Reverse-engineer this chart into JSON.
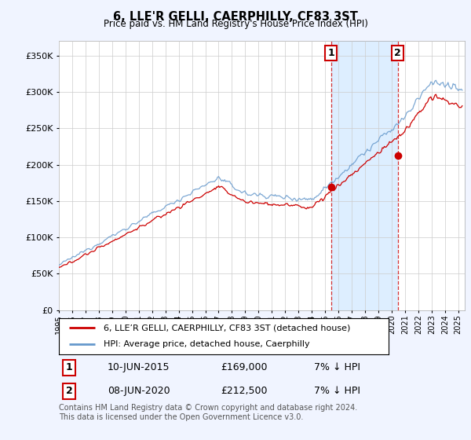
{
  "title": "6, LLE'R GELLI, CAERPHILLY, CF83 3ST",
  "subtitle": "Price paid vs. HM Land Registry's House Price Index (HPI)",
  "legend_line1": "6, LLE’R GELLI, CAERPHILLY, CF83 3ST (detached house)",
  "legend_line2": "HPI: Average price, detached house, Caerphilly",
  "annotation1_date": "10-JUN-2015",
  "annotation1_price": "£169,000",
  "annotation1_hpi": "7% ↓ HPI",
  "annotation1_year": 2015.45,
  "annotation1_value": 169000,
  "annotation2_date": "08-JUN-2020",
  "annotation2_price": "£212,500",
  "annotation2_hpi": "7% ↓ HPI",
  "annotation2_year": 2020.45,
  "annotation2_value": 212500,
  "footnote": "Contains HM Land Registry data © Crown copyright and database right 2024.\nThis data is licensed under the Open Government Licence v3.0.",
  "hpi_color": "#6699cc",
  "price_color": "#cc0000",
  "shade_color": "#ddeeff",
  "background_color": "#f0f4ff",
  "plot_bg_color": "#ffffff",
  "ylim": [
    0,
    370000
  ],
  "yticks": [
    0,
    50000,
    100000,
    150000,
    200000,
    250000,
    300000,
    350000
  ],
  "xmin": 1995,
  "xmax": 2025.5
}
